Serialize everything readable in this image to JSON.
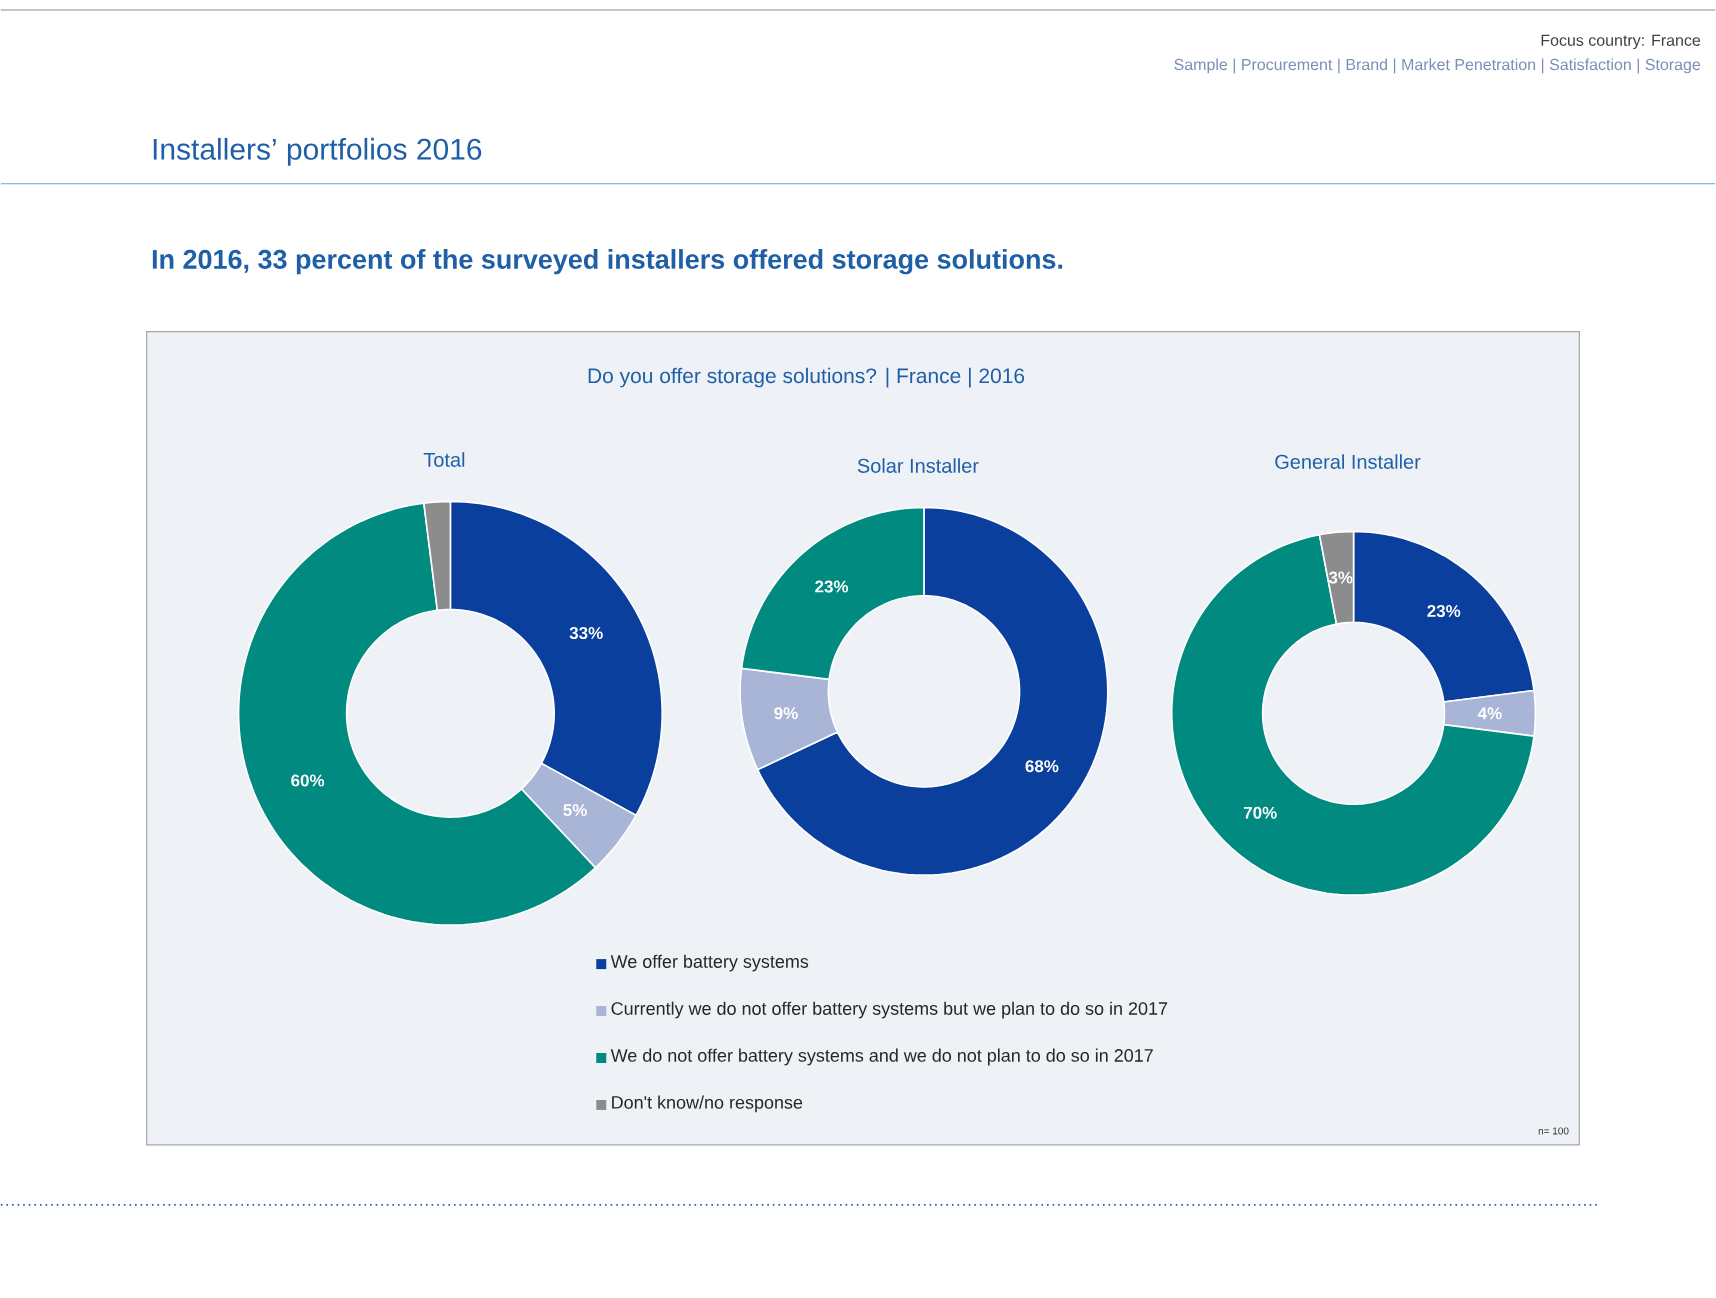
{
  "chart_data": [
    {
      "type": "donut",
      "title": "Total",
      "annotations": [
        "Installers’ portfolios 2016",
        "In 2016, 33 percent of the surveyed installers offered storage solutions.",
        "Do you offer storage solutions? | France | 2016",
        "Focus country: France",
        "Sample | Procurement | Brand | Market Penetration | Satisfaction | Storage"
      ],
      "categories": [
        "We offer battery systems",
        "Currently we do not offer battery systems but we plan to do so in 2017",
        "We do not offer battery systems and we do not plan to do so in 2017",
        "Don't know/no response"
      ],
      "values": [
        33,
        5,
        60,
        2
      ],
      "value_labels": [
        "33%",
        "5%",
        "60%",
        null
      ],
      "colors": [
        "#0b3f9e",
        "#a9b5d6",
        "#008a80",
        "#8c8c8c"
      ],
      "legend": "bottom"
    },
    {
      "type": "donut",
      "title": "Solar Installer",
      "categories": [
        null,
        null,
        null
      ],
      "values": [
        68,
        9,
        23
      ],
      "value_labels": [
        "68%",
        "9%",
        "23%"
      ],
      "colors": [
        "#0b3f9e",
        "#a9b5d6",
        "#008a80"
      ]
    },
    {
      "type": "donut",
      "title": "General Installer",
      "annotations": [
        "n= 100"
      ],
      "categories": [
        null,
        null,
        null,
        null
      ],
      "values": [
        23,
        4,
        70,
        3
      ],
      "value_labels": [
        "23%",
        "4%",
        "70%",
        "3%"
      ],
      "colors": [
        "#0b3f9e",
        "#a9b5d6",
        "#008a80",
        "#8c8c8c"
      ]
    }
  ]
}
